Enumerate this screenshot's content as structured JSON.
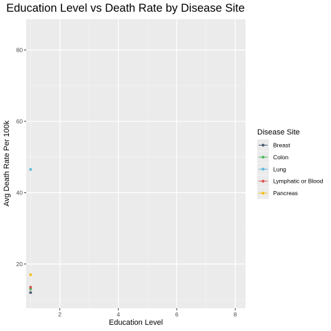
{
  "chart_data": {
    "type": "scatter",
    "title": "Education Level vs Death Rate by Disease Site",
    "xlabel": "Education Level",
    "ylabel": "Avg Death Rate Per 100k",
    "xlim": [
      0.85,
      8.35
    ],
    "ylim": [
      7.6,
      88.6
    ],
    "x_ticks": [
      2,
      4,
      6,
      8
    ],
    "y_ticks": [
      20,
      40,
      60,
      80
    ],
    "grid": true,
    "legend_title": "Disease Site",
    "legend_position": "right",
    "series": [
      {
        "name": "Breast",
        "color": "#495c6e",
        "points": [
          {
            "x": 1,
            "y": 12.0
          }
        ]
      },
      {
        "name": "Colon",
        "color": "#4cb85c",
        "points": [
          {
            "x": 1,
            "y": 13.0
          }
        ]
      },
      {
        "name": "Lung",
        "color": "#5bb8de",
        "points": [
          {
            "x": 1,
            "y": 46.5
          }
        ]
      },
      {
        "name": "Lymphatic or Blood",
        "color": "#d9534f",
        "points": [
          {
            "x": 1,
            "y": 13.5
          }
        ]
      },
      {
        "name": "Pancreas",
        "color": "#f5c018",
        "points": [
          {
            "x": 1,
            "y": 17.0
          }
        ]
      }
    ]
  }
}
